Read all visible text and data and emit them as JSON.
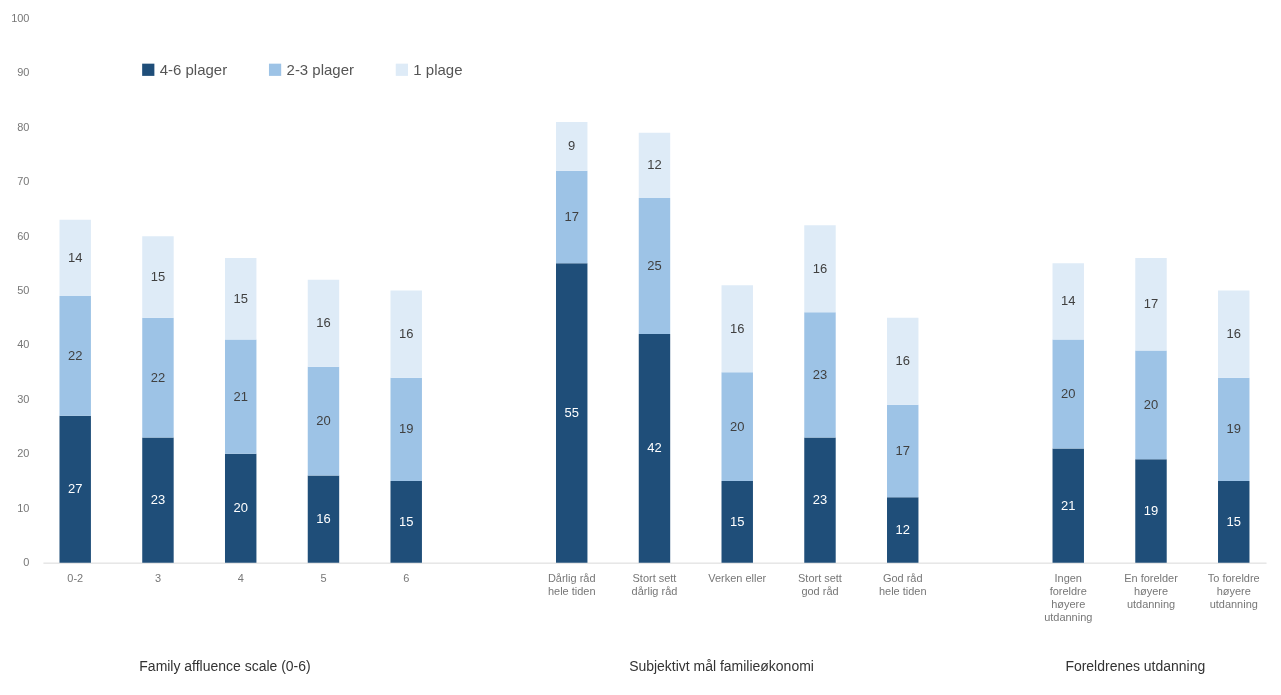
{
  "chart_data": {
    "type": "bar",
    "stacked": true,
    "categories": [
      "0-2",
      "3",
      "4",
      "5",
      "6",
      null,
      "Dårlig råd hele tiden",
      "Stort sett dårlig råd",
      "Verken eller",
      "Stort sett god råd",
      "God råd hele tiden",
      null,
      "Ingen foreldre høyere utdanning",
      "En forelder høyere utdanning",
      "To foreldre høyere utdanning"
    ],
    "series": [
      {
        "name": "4-6 plager",
        "color": "#1f4e79",
        "values": [
          27,
          23,
          20,
          16,
          15,
          null,
          55,
          42,
          15,
          23,
          12,
          null,
          21,
          19,
          15
        ]
      },
      {
        "name": "2-3 plager",
        "color": "#9dc3e6",
        "values": [
          22,
          22,
          21,
          20,
          19,
          null,
          17,
          25,
          20,
          23,
          17,
          null,
          20,
          20,
          19
        ]
      },
      {
        "name": "1 plage",
        "color": "#deebf7",
        "values": [
          14,
          15,
          15,
          16,
          16,
          null,
          9,
          12,
          16,
          16,
          16,
          null,
          14,
          17,
          16
        ]
      }
    ],
    "annotations": [
      "Family affluence scale (0-6)",
      "Subjektivt mål familieøkonomi",
      "Foreldrenes utdanning"
    ],
    "ylim": [
      0,
      100
    ],
    "yticks": [
      0,
      10,
      20,
      30,
      40,
      50,
      60,
      70,
      80,
      90,
      100
    ],
    "data_labels": true,
    "legend": "top left",
    "grid": false
  }
}
